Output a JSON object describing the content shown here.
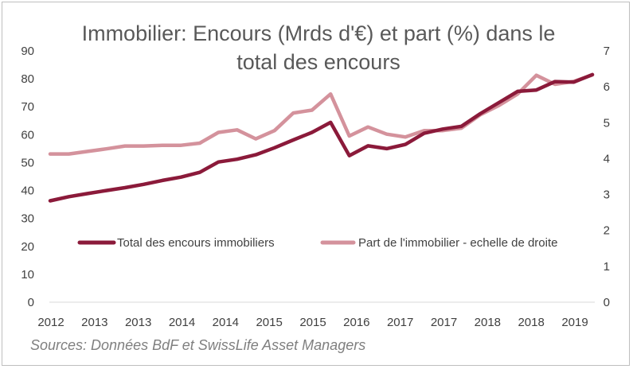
{
  "chart_data": {
    "type": "line",
    "title": "Immobilier:  Encours (Mrds d'€) et part (%) dans le total des encours",
    "source": "Sources: Données BdF et SwissLife Asset Managers",
    "x_tick_labels": [
      "2012",
      "2013",
      "2013",
      "2014",
      "2014",
      "2015",
      "2015",
      "2016",
      "2017",
      "2017",
      "2018",
      "2018",
      "2019"
    ],
    "y_left": {
      "ticks": [
        0,
        10,
        20,
        30,
        40,
        50,
        60,
        70,
        80,
        90
      ],
      "ylim": [
        0,
        90
      ]
    },
    "y_right": {
      "ticks": [
        0,
        1,
        2,
        3,
        4,
        5,
        6,
        7
      ],
      "ylim": [
        0,
        7
      ]
    },
    "grid": false,
    "legend_position": "middle",
    "series": [
      {
        "name": "Total des encours immobiliers",
        "axis": "left",
        "color": "#8b1a3a",
        "values": [
          36.3,
          37.8,
          38.9,
          40.0,
          41.0,
          42.2,
          43.6,
          44.8,
          46.5,
          50.2,
          51.2,
          52.8,
          55.3,
          58.1,
          60.8,
          64.4,
          52.5,
          56.0,
          55.0,
          56.5,
          60.5,
          62.0,
          63.0,
          67.5,
          71.5,
          75.5,
          76.0,
          79.0,
          78.8,
          81.5
        ]
      },
      {
        "name": "Part de l'immobilier - echelle de droite",
        "axis": "right",
        "color": "#d4929c",
        "values": [
          4.13,
          4.13,
          4.2,
          4.27,
          4.35,
          4.35,
          4.37,
          4.37,
          4.43,
          4.73,
          4.8,
          4.55,
          4.78,
          5.27,
          5.35,
          5.8,
          4.63,
          4.88,
          4.68,
          4.6,
          4.78,
          4.78,
          4.85,
          5.22,
          5.48,
          5.8,
          6.32,
          6.07,
          6.15,
          6.33
        ]
      }
    ]
  },
  "colors": {
    "axis": "#d9d9d9",
    "text": "#404040",
    "title": "#595959",
    "source": "#7f7f7f"
  }
}
